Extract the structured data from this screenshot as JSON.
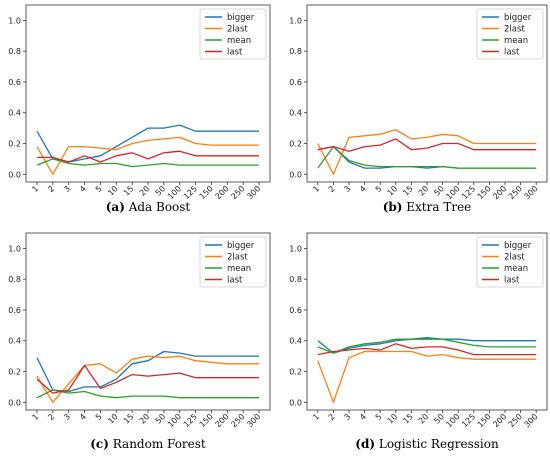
{
  "chart_data": [
    {
      "type": "line",
      "caption_letter": "(a)",
      "caption_text": "Ada Boost",
      "categories": [
        "1",
        "2",
        "3",
        "4",
        "5",
        "10",
        "15",
        "20",
        "50",
        "100",
        "125",
        "150",
        "200",
        "250",
        "300"
      ],
      "yticks": [
        "0.0",
        "0.2",
        "0.4",
        "0.6",
        "0.8",
        "1.0"
      ],
      "ylim": [
        -0.05,
        1.1
      ],
      "legend_position": "top-right",
      "series": [
        {
          "name": "bigger",
          "color": "#1f77b4",
          "values": [
            0.28,
            0.1,
            0.08,
            0.1,
            0.12,
            0.18,
            0.24,
            0.3,
            0.3,
            0.32,
            0.28,
            0.28,
            0.28,
            0.28,
            0.28
          ]
        },
        {
          "name": "2last",
          "color": "#ff7f0e",
          "values": [
            0.18,
            0.0,
            0.18,
            0.18,
            0.17,
            0.16,
            0.2,
            0.22,
            0.23,
            0.24,
            0.2,
            0.19,
            0.19,
            0.19,
            0.19
          ]
        },
        {
          "name": "mean",
          "color": "#2ca02c",
          "values": [
            0.06,
            0.1,
            0.07,
            0.06,
            0.07,
            0.07,
            0.05,
            0.06,
            0.07,
            0.06,
            0.06,
            0.06,
            0.06,
            0.06,
            0.06
          ]
        },
        {
          "name": "last",
          "color": "#d62728",
          "values": [
            0.11,
            0.11,
            0.08,
            0.12,
            0.08,
            0.12,
            0.14,
            0.1,
            0.14,
            0.15,
            0.12,
            0.12,
            0.12,
            0.12,
            0.12
          ]
        }
      ]
    },
    {
      "type": "line",
      "caption_letter": "(b)",
      "caption_text": "Extra Tree",
      "categories": [
        "1",
        "2",
        "3",
        "4",
        "5",
        "10",
        "15",
        "20",
        "50",
        "100",
        "125",
        "150",
        "200",
        "250",
        "300"
      ],
      "yticks": [
        "0.0",
        "0.2",
        "0.4",
        "0.6",
        "0.8",
        "1.0"
      ],
      "ylim": [
        -0.05,
        1.1
      ],
      "legend_position": "top-right",
      "series": [
        {
          "name": "bigger",
          "color": "#1f77b4",
          "values": [
            0.16,
            0.18,
            0.08,
            0.04,
            0.04,
            0.05,
            0.05,
            0.04,
            0.05,
            0.04,
            0.04,
            0.04,
            0.04,
            0.04,
            0.04
          ]
        },
        {
          "name": "2last",
          "color": "#ff7f0e",
          "values": [
            0.2,
            0.0,
            0.24,
            0.25,
            0.26,
            0.29,
            0.23,
            0.24,
            0.26,
            0.25,
            0.2,
            0.2,
            0.2,
            0.2,
            0.2
          ]
        },
        {
          "name": "mean",
          "color": "#2ca02c",
          "values": [
            0.04,
            0.18,
            0.09,
            0.06,
            0.05,
            0.05,
            0.05,
            0.05,
            0.05,
            0.04,
            0.04,
            0.04,
            0.04,
            0.04,
            0.04
          ]
        },
        {
          "name": "last",
          "color": "#d62728",
          "values": [
            0.16,
            0.18,
            0.15,
            0.18,
            0.19,
            0.23,
            0.16,
            0.17,
            0.2,
            0.2,
            0.16,
            0.16,
            0.16,
            0.16,
            0.16
          ]
        }
      ]
    },
    {
      "type": "line",
      "caption_letter": "(c)",
      "caption_text": "Random Forest",
      "categories": [
        "1",
        "2",
        "3",
        "4",
        "5",
        "10",
        "15",
        "20",
        "50",
        "100",
        "125",
        "150",
        "200",
        "250",
        "300"
      ],
      "yticks": [
        "0.0",
        "0.2",
        "0.4",
        "0.6",
        "0.8",
        "1.0"
      ],
      "ylim": [
        -0.05,
        1.1
      ],
      "legend_position": "top-right",
      "series": [
        {
          "name": "bigger",
          "color": "#1f77b4",
          "values": [
            0.29,
            0.08,
            0.07,
            0.1,
            0.1,
            0.15,
            0.25,
            0.27,
            0.33,
            0.32,
            0.3,
            0.3,
            0.3,
            0.3,
            0.3
          ]
        },
        {
          "name": "2last",
          "color": "#ff7f0e",
          "values": [
            0.17,
            0.0,
            0.12,
            0.24,
            0.25,
            0.19,
            0.28,
            0.3,
            0.29,
            0.3,
            0.27,
            0.26,
            0.25,
            0.25,
            0.25
          ]
        },
        {
          "name": "mean",
          "color": "#2ca02c",
          "values": [
            0.03,
            0.08,
            0.06,
            0.07,
            0.04,
            0.03,
            0.04,
            0.04,
            0.04,
            0.03,
            0.03,
            0.03,
            0.03,
            0.03,
            0.03
          ]
        },
        {
          "name": "last",
          "color": "#d62728",
          "values": [
            0.15,
            0.06,
            0.08,
            0.24,
            0.09,
            0.13,
            0.18,
            0.17,
            0.18,
            0.19,
            0.16,
            0.16,
            0.16,
            0.16,
            0.16
          ]
        }
      ]
    },
    {
      "type": "line",
      "caption_letter": "(d)",
      "caption_text": "Logistic Regression",
      "categories": [
        "1",
        "2",
        "3",
        "4",
        "5",
        "10",
        "15",
        "20",
        "50",
        "100",
        "125",
        "150",
        "200",
        "250",
        "300"
      ],
      "yticks": [
        "0.0",
        "0.2",
        "0.4",
        "0.6",
        "0.8",
        "1.0"
      ],
      "ylim": [
        -0.05,
        1.1
      ],
      "legend_position": "top-right",
      "series": [
        {
          "name": "bigger",
          "color": "#1f77b4",
          "values": [
            0.4,
            0.32,
            0.35,
            0.37,
            0.38,
            0.4,
            0.41,
            0.42,
            0.41,
            0.41,
            0.4,
            0.4,
            0.4,
            0.4,
            0.4
          ]
        },
        {
          "name": "2last",
          "color": "#ff7f0e",
          "values": [
            0.27,
            0.0,
            0.29,
            0.33,
            0.33,
            0.33,
            0.33,
            0.3,
            0.31,
            0.29,
            0.28,
            0.28,
            0.28,
            0.28,
            0.28
          ]
        },
        {
          "name": "mean",
          "color": "#2ca02c",
          "values": [
            0.36,
            0.32,
            0.36,
            0.38,
            0.39,
            0.41,
            0.41,
            0.41,
            0.41,
            0.39,
            0.37,
            0.36,
            0.36,
            0.36,
            0.36
          ]
        },
        {
          "name": "last",
          "color": "#d62728",
          "values": [
            0.31,
            0.33,
            0.34,
            0.35,
            0.34,
            0.38,
            0.35,
            0.36,
            0.36,
            0.34,
            0.31,
            0.31,
            0.31,
            0.31,
            0.31
          ]
        }
      ]
    }
  ]
}
